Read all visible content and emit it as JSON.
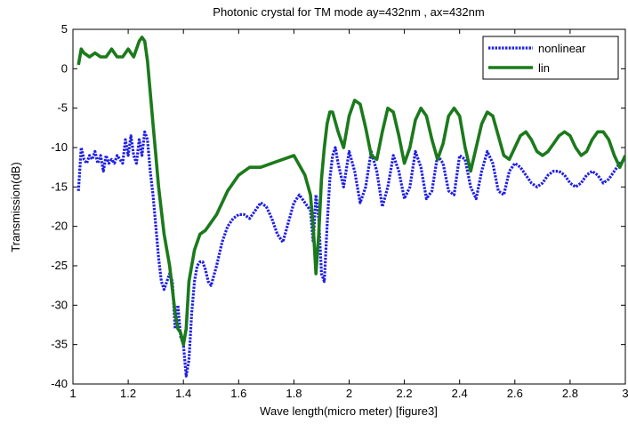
{
  "chart_data": {
    "type": "line",
    "title": "Photonic crystal  for TM mode ay=432nm , ax=432nm",
    "xlabel": "Wave length(micro meter) [figure3]",
    "ylabel": "Transmission(dB)",
    "xlim": [
      1,
      3
    ],
    "ylim": [
      -40,
      5
    ],
    "xticks": [
      1,
      1.2,
      1.4,
      1.6,
      1.8,
      2,
      2.2,
      2.4,
      2.6,
      2.8,
      3
    ],
    "xtick_labels": [
      "1",
      "1.2",
      "1.4",
      "1.6",
      "1.8",
      "2",
      "2.2",
      "2.4",
      "2.6",
      "2.8",
      "3"
    ],
    "yticks": [
      5,
      0,
      -5,
      -10,
      -15,
      -20,
      -25,
      -30,
      -35,
      -40
    ],
    "ytick_labels": [
      "5",
      "0",
      "-5",
      "-10",
      "-15",
      "-20",
      "-25",
      "-30",
      "-35",
      "-40"
    ],
    "grid": false,
    "legend_position": "top-right",
    "series": [
      {
        "name": "nonlinear",
        "color": "#1f1fe6",
        "style": "dotted",
        "x": [
          1.02,
          1.03,
          1.04,
          1.05,
          1.06,
          1.07,
          1.08,
          1.09,
          1.1,
          1.11,
          1.12,
          1.13,
          1.14,
          1.15,
          1.16,
          1.17,
          1.18,
          1.19,
          1.2,
          1.21,
          1.22,
          1.23,
          1.24,
          1.25,
          1.26,
          1.27,
          1.28,
          1.29,
          1.3,
          1.31,
          1.32,
          1.33,
          1.34,
          1.35,
          1.36,
          1.37,
          1.38,
          1.39,
          1.4,
          1.41,
          1.42,
          1.43,
          1.44,
          1.45,
          1.46,
          1.47,
          1.48,
          1.49,
          1.5,
          1.52,
          1.54,
          1.56,
          1.58,
          1.6,
          1.62,
          1.64,
          1.66,
          1.68,
          1.7,
          1.72,
          1.74,
          1.76,
          1.78,
          1.8,
          1.82,
          1.84,
          1.86,
          1.87,
          1.88,
          1.89,
          1.9,
          1.91,
          1.92,
          1.93,
          1.94,
          1.95,
          1.96,
          1.98,
          2.0,
          2.02,
          2.04,
          2.06,
          2.08,
          2.1,
          2.12,
          2.14,
          2.16,
          2.18,
          2.2,
          2.22,
          2.24,
          2.26,
          2.28,
          2.3,
          2.32,
          2.34,
          2.36,
          2.38,
          2.4,
          2.42,
          2.44,
          2.46,
          2.48,
          2.5,
          2.52,
          2.54,
          2.56,
          2.58,
          2.6,
          2.62,
          2.64,
          2.66,
          2.68,
          2.7,
          2.72,
          2.74,
          2.76,
          2.78,
          2.8,
          2.82,
          2.84,
          2.86,
          2.88,
          2.9,
          2.92,
          2.94,
          2.96,
          2.98,
          3.0
        ],
        "y": [
          -15.5,
          -10,
          -11.5,
          -12,
          -11,
          -11.5,
          -10.5,
          -12,
          -11,
          -13,
          -11,
          -12,
          -11.5,
          -12,
          -11,
          -11.5,
          -12,
          -9,
          -11,
          -8.5,
          -11,
          -12,
          -9,
          -11,
          -8,
          -9,
          -13,
          -16,
          -20,
          -24,
          -27,
          -28,
          -27,
          -26,
          -27,
          -33,
          -30,
          -34,
          -35,
          -39,
          -37,
          -31,
          -27,
          -25,
          -24.5,
          -24.5,
          -25.5,
          -27,
          -27.5,
          -25,
          -22,
          -20,
          -19,
          -18.5,
          -18.5,
          -19,
          -18,
          -17,
          -17.5,
          -19,
          -21,
          -22,
          -19.5,
          -17,
          -16,
          -17,
          -18,
          -22,
          -16,
          -19,
          -26,
          -27,
          -20,
          -14,
          -11,
          -10,
          -12,
          -15,
          -10.5,
          -13,
          -17,
          -15,
          -10.5,
          -13,
          -17.5,
          -15,
          -11,
          -13,
          -16.5,
          -15,
          -10.5,
          -12.5,
          -16.5,
          -15.5,
          -11,
          -12,
          -15.5,
          -16,
          -11,
          -11.5,
          -15,
          -16.5,
          -13,
          -10.5,
          -12,
          -15.5,
          -16,
          -13,
          -12,
          -12.5,
          -13.5,
          -14.5,
          -15,
          -14.5,
          -13.5,
          -13,
          -13,
          -13.5,
          -14.5,
          -15,
          -14.5,
          -13.5,
          -13,
          -13.5,
          -14.5,
          -14,
          -13,
          -12,
          -11.5
        ]
      },
      {
        "name": "lin",
        "color": "#1b7a1b",
        "style": "solid",
        "x": [
          1.02,
          1.03,
          1.04,
          1.06,
          1.08,
          1.1,
          1.12,
          1.14,
          1.16,
          1.18,
          1.2,
          1.22,
          1.24,
          1.25,
          1.26,
          1.27,
          1.28,
          1.29,
          1.3,
          1.31,
          1.32,
          1.33,
          1.34,
          1.35,
          1.36,
          1.37,
          1.38,
          1.39,
          1.4,
          1.41,
          1.42,
          1.44,
          1.46,
          1.48,
          1.5,
          1.52,
          1.54,
          1.56,
          1.58,
          1.6,
          1.64,
          1.68,
          1.72,
          1.76,
          1.8,
          1.84,
          1.86,
          1.87,
          1.88,
          1.89,
          1.9,
          1.91,
          1.92,
          1.93,
          1.94,
          1.96,
          1.98,
          2.0,
          2.02,
          2.04,
          2.06,
          2.08,
          2.1,
          2.12,
          2.14,
          2.16,
          2.18,
          2.2,
          2.22,
          2.24,
          2.26,
          2.28,
          2.3,
          2.32,
          2.34,
          2.36,
          2.38,
          2.4,
          2.42,
          2.44,
          2.46,
          2.48,
          2.5,
          2.52,
          2.54,
          2.56,
          2.58,
          2.6,
          2.62,
          2.64,
          2.66,
          2.68,
          2.7,
          2.72,
          2.74,
          2.76,
          2.78,
          2.8,
          2.82,
          2.84,
          2.86,
          2.88,
          2.9,
          2.92,
          2.94,
          2.96,
          2.98,
          3.0
        ],
        "y": [
          0.5,
          2.5,
          2,
          1.5,
          2,
          1.5,
          1.5,
          2.5,
          1.5,
          1.5,
          2.5,
          1.5,
          3.5,
          4,
          3.5,
          1,
          -3,
          -7,
          -11,
          -15,
          -18,
          -21,
          -23,
          -25,
          -28,
          -31,
          -33,
          -33.5,
          -35,
          -33,
          -27,
          -23,
          -21,
          -20.5,
          -19.5,
          -18.5,
          -17,
          -15.5,
          -14.5,
          -13.5,
          -12.5,
          -12.5,
          -12,
          -11.5,
          -11,
          -13.5,
          -16,
          -20,
          -26,
          -21,
          -14,
          -10,
          -7,
          -5.5,
          -5.5,
          -8,
          -10,
          -6,
          -4,
          -4.5,
          -7.5,
          -11,
          -11.5,
          -8,
          -5,
          -5.5,
          -8.5,
          -12,
          -10,
          -6.5,
          -5,
          -6,
          -9,
          -11.5,
          -9.5,
          -6,
          -5,
          -6,
          -10,
          -13,
          -10,
          -7,
          -5.5,
          -6,
          -8.5,
          -11,
          -11.5,
          -10,
          -8.5,
          -8,
          -9,
          -10.5,
          -11,
          -10.5,
          -9.5,
          -8.5,
          -8,
          -8.5,
          -10,
          -11,
          -10.5,
          -9,
          -8,
          -8,
          -9,
          -11,
          -12.5,
          -11
        ]
      }
    ]
  }
}
